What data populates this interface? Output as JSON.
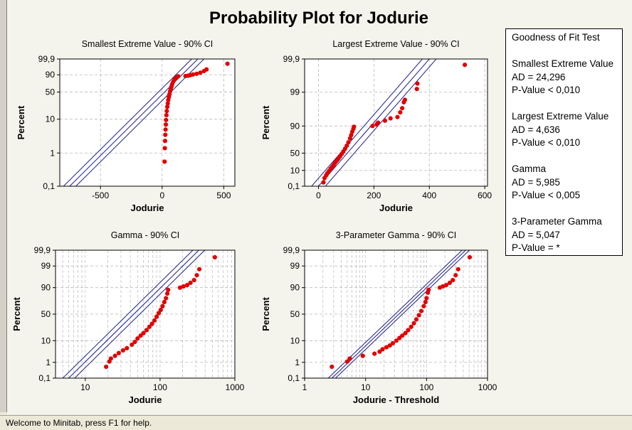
{
  "title": "Probability Plot for Jodurie",
  "status_text": "Welcome to Minitab, press F1 for help.",
  "colors": {
    "points": "#e00000",
    "lines": "#1c1c8a",
    "grid": "#b8b8b8",
    "background": "#f5f4ec"
  },
  "goodness_of_fit": {
    "heading": "Goodness of Fit Test",
    "entries": [
      {
        "name": "Smallest Extreme Value",
        "ad": "AD = 24,296",
        "p": "P-Value < 0,010"
      },
      {
        "name": "Largest Extreme Value",
        "ad": "AD = 4,636",
        "p": "P-Value < 0,010"
      },
      {
        "name": "Gamma",
        "ad": "AD = 5,985",
        "p": "P-Value < 0,005"
      },
      {
        "name": "3-Parameter Gamma",
        "ad": "AD = 5,047",
        "p": "P-Value = *"
      }
    ]
  },
  "chart_data": [
    {
      "type": "scatter",
      "title": "Smallest Extreme Value - 90% CI",
      "xlabel": "Jodurie",
      "ylabel": "Percent",
      "xscale": "linear",
      "xlim": [
        -830,
        590
      ],
      "xticks": [
        -500,
        0,
        500
      ],
      "xtick_labels": [
        "-500",
        "0",
        "500"
      ],
      "yscale": "smallest-extreme-value",
      "ylim": [
        0.1,
        99.9
      ],
      "yticks": [
        0.1,
        1,
        10,
        50,
        90,
        99.9
      ],
      "ytick_labels": [
        "0,1",
        "1",
        "10",
        "50",
        "90",
        "99,9"
      ],
      "grid": true,
      "fit_x": [
        -750,
        290
      ],
      "ci_offset": 50,
      "points": [
        [
          20,
          0.55
        ],
        [
          22,
          1.4
        ],
        [
          24,
          2.3
        ],
        [
          26,
          3.5
        ],
        [
          28,
          5
        ],
        [
          30,
          7
        ],
        [
          32,
          9.5
        ],
        [
          35,
          13
        ],
        [
          38,
          17
        ],
        [
          42,
          22
        ],
        [
          46,
          27
        ],
        [
          50,
          33
        ],
        [
          55,
          39
        ],
        [
          60,
          45
        ],
        [
          65,
          52
        ],
        [
          70,
          58
        ],
        [
          76,
          64
        ],
        [
          82,
          70
        ],
        [
          90,
          76
        ],
        [
          100,
          81
        ],
        [
          110,
          84
        ],
        [
          120,
          86
        ],
        [
          130,
          87.5
        ],
        [
          190,
          88
        ],
        [
          210,
          88.5
        ],
        [
          230,
          89.5
        ],
        [
          250,
          90.5
        ],
        [
          280,
          91.5
        ],
        [
          310,
          93
        ],
        [
          340,
          95
        ],
        [
          360,
          96.5
        ],
        [
          530,
          99.3
        ]
      ]
    },
    {
      "type": "scatter",
      "title": "Largest Extreme Value - 90% CI",
      "xlabel": "Jodurie",
      "ylabel": "Percent",
      "xscale": "linear",
      "xlim": [
        -50,
        610
      ],
      "xticks": [
        0,
        200,
        400,
        600
      ],
      "xtick_labels": [
        "0",
        "200",
        "400",
        "600"
      ],
      "yscale": "largest-extreme-value",
      "ylim": [
        0.1,
        99.9
      ],
      "yticks": [
        0.1,
        10,
        50,
        90,
        99,
        99.9
      ],
      "ytick_labels": [
        "0,1",
        "10",
        "50",
        "90",
        "99",
        "99,9"
      ],
      "grid": true,
      "fit_x": [
        0,
        400
      ],
      "ci_offset": 25,
      "points": [
        [
          18,
          0.5
        ],
        [
          22,
          2
        ],
        [
          28,
          4
        ],
        [
          32,
          6
        ],
        [
          38,
          9
        ],
        [
          44,
          13
        ],
        [
          50,
          17
        ],
        [
          55,
          21
        ],
        [
          60,
          26
        ],
        [
          66,
          31
        ],
        [
          72,
          36
        ],
        [
          78,
          42
        ],
        [
          84,
          48
        ],
        [
          90,
          54
        ],
        [
          96,
          60
        ],
        [
          102,
          66
        ],
        [
          108,
          72
        ],
        [
          114,
          78
        ],
        [
          118,
          82
        ],
        [
          122,
          85.5
        ],
        [
          126,
          88
        ],
        [
          128,
          89.5
        ],
        [
          195,
          90
        ],
        [
          210,
          91
        ],
        [
          215,
          92
        ],
        [
          240,
          93
        ],
        [
          260,
          94
        ],
        [
          285,
          94.5
        ],
        [
          295,
          96
        ],
        [
          302,
          97
        ],
        [
          308,
          98
        ],
        [
          312,
          98.3
        ],
        [
          355,
          99.2
        ],
        [
          357,
          99.45
        ],
        [
          528,
          99.85
        ]
      ]
    },
    {
      "type": "scatter",
      "title": "Gamma - 90% CI",
      "xlabel": "Jodurie",
      "ylabel": "Percent",
      "xscale": "log",
      "xlim": [
        4,
        1000
      ],
      "xticks": [
        10,
        100,
        1000
      ],
      "xtick_labels": [
        "10",
        "100",
        "1000"
      ],
      "yscale": "gamma",
      "ylim": [
        0.1,
        99.9
      ],
      "yticks": [
        0.1,
        1,
        10,
        50,
        90,
        99,
        99.9
      ],
      "ytick_labels": [
        "0,1",
        "1",
        "10",
        "50",
        "90",
        "99",
        "99,9"
      ],
      "grid": true,
      "fit_x": [
        6,
        330
      ],
      "ci_factor": 1.2,
      "points": [
        [
          19,
          0.55
        ],
        [
          21,
          1.1
        ],
        [
          22,
          1.6
        ],
        [
          25,
          2.2
        ],
        [
          28,
          3
        ],
        [
          32,
          4
        ],
        [
          36,
          5
        ],
        [
          42,
          7
        ],
        [
          46,
          9
        ],
        [
          50,
          12
        ],
        [
          55,
          15
        ],
        [
          60,
          18
        ],
        [
          66,
          22
        ],
        [
          72,
          27
        ],
        [
          78,
          32
        ],
        [
          84,
          38
        ],
        [
          90,
          45
        ],
        [
          96,
          52
        ],
        [
          102,
          58
        ],
        [
          108,
          65
        ],
        [
          114,
          72
        ],
        [
          120,
          78
        ],
        [
          125,
          84
        ],
        [
          128,
          88
        ],
        [
          185,
          90
        ],
        [
          205,
          91
        ],
        [
          230,
          92
        ],
        [
          255,
          93.5
        ],
        [
          285,
          95
        ],
        [
          310,
          97
        ],
        [
          335,
          98.5
        ],
        [
          540,
          99.7
        ]
      ]
    },
    {
      "type": "scatter",
      "title": "3-Parameter Gamma - 90% CI",
      "xlabel": "Jodurie - Threshold",
      "ylabel": "Percent",
      "xscale": "log",
      "xlim": [
        1,
        1000
      ],
      "xticks": [
        1,
        10,
        100,
        1000
      ],
      "xtick_labels": [
        "1",
        "10",
        "100",
        "1000"
      ],
      "yscale": "gamma",
      "ylim": [
        0.1,
        99.9
      ],
      "yticks": [
        0.1,
        1,
        10,
        50,
        90,
        99,
        99.9
      ],
      "ytick_labels": [
        "0,1",
        "1",
        "10",
        "50",
        "90",
        "99",
        "99,9"
      ],
      "grid": true,
      "fit_x": [
        2.8,
        440
      ],
      "points": [
        [
          2.8,
          0.55
        ],
        [
          5,
          1.1
        ],
        [
          5.5,
          1.6
        ],
        [
          9,
          2.2
        ],
        [
          14,
          2.8
        ],
        [
          17,
          3.5
        ],
        [
          19,
          4.5
        ],
        [
          22,
          5.5
        ],
        [
          25,
          6.5
        ],
        [
          28,
          8
        ],
        [
          32,
          10
        ],
        [
          36,
          12.5
        ],
        [
          40,
          15
        ],
        [
          45,
          18
        ],
        [
          50,
          22
        ],
        [
          56,
          27
        ],
        [
          62,
          33
        ],
        [
          68,
          40
        ],
        [
          75,
          48
        ],
        [
          82,
          56
        ],
        [
          90,
          65
        ],
        [
          96,
          72
        ],
        [
          100,
          78
        ],
        [
          105,
          85
        ],
        [
          108,
          88
        ],
        [
          165,
          90
        ],
        [
          185,
          91
        ],
        [
          210,
          92
        ],
        [
          240,
          93.5
        ],
        [
          270,
          95
        ],
        [
          300,
          97
        ],
        [
          330,
          98.5
        ],
        [
          510,
          99.7
        ]
      ]
    }
  ]
}
